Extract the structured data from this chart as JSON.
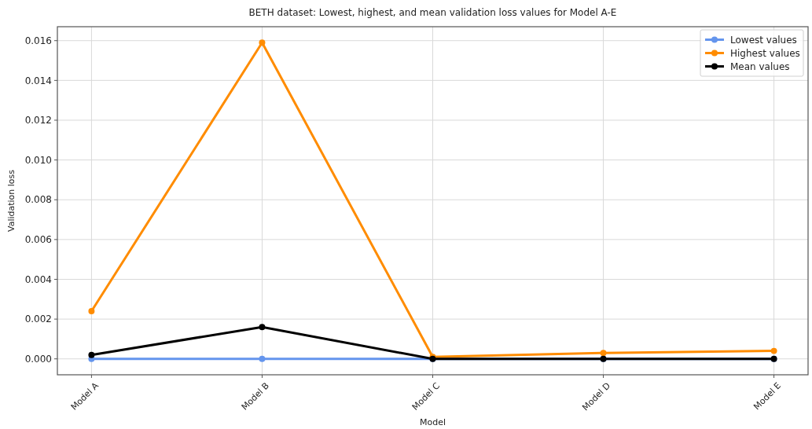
{
  "chart_data": {
    "type": "line",
    "title": "BETH dataset: Lowest, highest, and mean validation loss values for Model A-E",
    "xlabel": "Model",
    "ylabel": "Validation loss",
    "categories": [
      "Model A",
      "Model B",
      "Model C",
      "Model D",
      "Model E"
    ],
    "series": [
      {
        "name": "Lowest values",
        "color": "#6495ed",
        "values": [
          0,
          0,
          0,
          0,
          0
        ]
      },
      {
        "name": "Highest values",
        "color": "#ff8c00",
        "values": [
          0.0024,
          0.0159,
          0.0001,
          0.0003,
          0.0004
        ]
      },
      {
        "name": "Mean values",
        "color": "#000000",
        "values": [
          0.0002,
          0.0016,
          0,
          0,
          0
        ]
      }
    ],
    "ylim": [
      -0.0008,
      0.0167
    ],
    "yticks": [
      {
        "value": 0,
        "label": "0.000"
      },
      {
        "value": 0.002,
        "label": "0.002"
      },
      {
        "value": 0.004,
        "label": "0.004"
      },
      {
        "value": 0.006,
        "label": "0.006"
      },
      {
        "value": 0.008,
        "label": "0.008"
      },
      {
        "value": 0.01,
        "label": "0.010"
      },
      {
        "value": 0.012,
        "label": "0.012"
      },
      {
        "value": 0.014,
        "label": "0.014"
      },
      {
        "value": 0.016,
        "label": "0.016"
      }
    ],
    "grid": true,
    "legend": "top right",
    "marker": "circle",
    "line_style": "solid"
  }
}
